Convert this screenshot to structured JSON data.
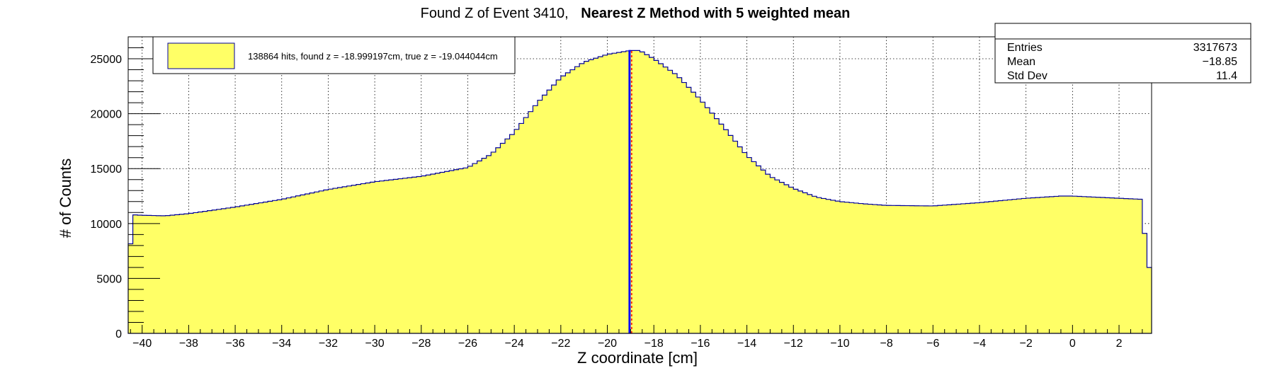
{
  "chart_data": {
    "type": "histogram",
    "title_part1": "Found Z of Event 3410,",
    "title_part2": "Nearest Z Method with 5 weighted mean",
    "xlabel": "Z coordinate [cm]",
    "ylabel": "# of Counts",
    "xlim": [
      -40.6,
      3.4
    ],
    "ylim": [
      0,
      27000
    ],
    "xticks": [
      -40,
      -38,
      -36,
      -34,
      -32,
      -30,
      -28,
      -26,
      -24,
      -22,
      -20,
      -18,
      -16,
      -14,
      -12,
      -10,
      -8,
      -6,
      -4,
      -2,
      0,
      2
    ],
    "xtick_labels": [
      "−40",
      "−38",
      "−36",
      "−34",
      "−32",
      "−30",
      "−28",
      "−26",
      "−24",
      "−22",
      "−20",
      "−18",
      "−16",
      "−14",
      "−12",
      "−10",
      "−8",
      "−6",
      "−4",
      "−2",
      "0",
      "2"
    ],
    "yticks": [
      0,
      5000,
      10000,
      15000,
      20000,
      25000
    ],
    "ytick_labels": [
      "0",
      "5000",
      "10000",
      "15000",
      "20000",
      "25000"
    ],
    "grid": true,
    "fill_color": "#ffff66",
    "line_color": "#000099",
    "bin_width": 0.2,
    "key_points": [
      [
        -40.6,
        5500
      ],
      [
        -40.4,
        10800
      ],
      [
        -40.0,
        10750
      ],
      [
        -39.0,
        10700
      ],
      [
        -38.0,
        10900
      ],
      [
        -36.0,
        11500
      ],
      [
        -34.0,
        12200
      ],
      [
        -32.0,
        13100
      ],
      [
        -30.0,
        13800
      ],
      [
        -28.0,
        14300
      ],
      [
        -26.0,
        15100
      ],
      [
        -25.0,
        16300
      ],
      [
        -24.0,
        18300
      ],
      [
        -23.0,
        21000
      ],
      [
        -22.0,
        23300
      ],
      [
        -21.0,
        24700
      ],
      [
        -20.0,
        25400
      ],
      [
        -19.0,
        25750
      ],
      [
        -18.6,
        25750
      ],
      [
        -18.0,
        25000
      ],
      [
        -17.0,
        23500
      ],
      [
        -16.0,
        21300
      ],
      [
        -15.0,
        18800
      ],
      [
        -14.0,
        16200
      ],
      [
        -13.0,
        14300
      ],
      [
        -12.0,
        13200
      ],
      [
        -11.0,
        12400
      ],
      [
        -10.0,
        12000
      ],
      [
        -9.0,
        11800
      ],
      [
        -8.0,
        11650
      ],
      [
        -6.0,
        11600
      ],
      [
        -4.0,
        11900
      ],
      [
        -2.0,
        12300
      ],
      [
        -0.5,
        12500
      ],
      [
        0.0,
        12500
      ],
      [
        1.0,
        12400
      ],
      [
        2.0,
        12300
      ],
      [
        3.0,
        12200
      ],
      [
        3.2,
        6000
      ]
    ],
    "found_z": -18.999197,
    "true_z": -19.044044,
    "found_z_color": "#ff0000",
    "true_z_color": "#0000ff",
    "legend": {
      "entry": "138864 hits, found z = -18.999197cm, true z = -19.044044cm",
      "placement": "top-left"
    },
    "stats": {
      "placement": "top-right",
      "entries_label": "Entries",
      "entries_value": "3317673",
      "mean_label": "Mean",
      "mean_value": "−18.85",
      "stddev_label": "Std Dev",
      "stddev_value": "11.4"
    }
  }
}
